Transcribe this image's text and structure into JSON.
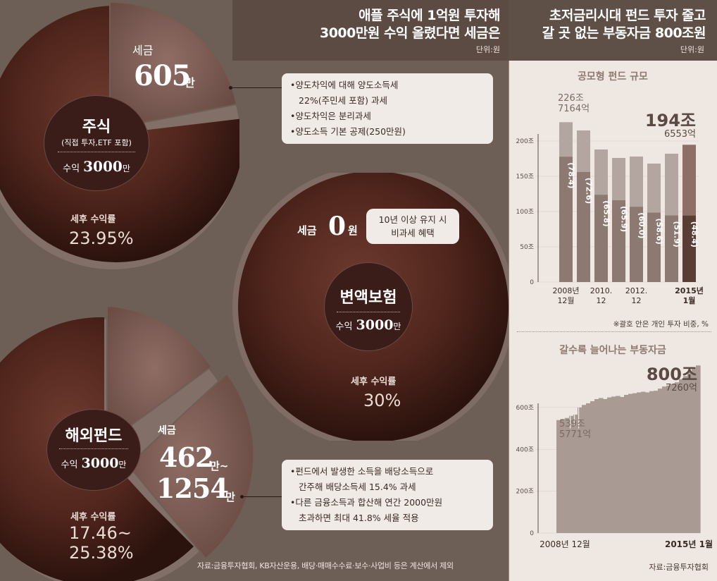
{
  "left": {
    "title_line1": "애플 주식에 1억원 투자해",
    "title_line2": "3000만원 수익 올렸다면 세금은",
    "unit": "단위:원",
    "stock": {
      "tax_label": "세금",
      "tax_value": "605",
      "tax_suffix": "만",
      "name": "주식",
      "desc": "(직접 투자,ETF 포함)",
      "profit_label": "수익",
      "profit_value": "3000",
      "profit_suffix": "만",
      "rate_label": "세후 수익률",
      "rate_value": "23.95%",
      "notes": [
        "•양도차익에 대해 양도소득세",
        "22%(주민세 포함) 과세",
        "•양도차익은 분리과세",
        "•양도소득 기본 공제(250만원)"
      ]
    },
    "insurance": {
      "tax_label": "세금",
      "tax_value": "0",
      "tax_suffix": "원",
      "badge_line1": "10년 이상 유지 시",
      "badge_line2": "비과세 혜택",
      "name": "변액보험",
      "profit_label": "수익",
      "profit_value": "3000",
      "profit_suffix": "만",
      "rate_label": "세후 수익률",
      "rate_value": "30%"
    },
    "fund": {
      "tax_label": "세금",
      "tax_value1": "462",
      "tax_suffix1": "만~",
      "tax_value2": "1254",
      "tax_suffix2": "만",
      "name": "해외펀드",
      "profit_label": "수익",
      "profit_value": "3000",
      "profit_suffix": "만",
      "rate_label": "세후 수익률",
      "rate_line1": "17.46~",
      "rate_line2": "25.38%",
      "notes": [
        "•펀드에서 발생한 소득을 배당소득으로",
        "간주해 배당소득세 15.4% 과세",
        "•다른 금융소득과 합산해 연간 2000만원",
        "초과하면 최대 41.8% 세율 적용"
      ]
    },
    "source": "자료:금융투자협회, KB자산운용, 배당·매매수수료·보수·사업비 등은 계산에서 제외"
  },
  "right": {
    "title_line1": "초저금리시대 펀드 투자 줄고",
    "title_line2": "갈 곳 없는 부동자금 800조원",
    "unit": "단위:원",
    "chart1_subtitle": "공모형 펀드 규모",
    "chart1_first_line1": "226조",
    "chart1_first_line2": "7164억",
    "chart1_last_line1": "194조",
    "chart1_last_line2": "6553억",
    "chart1_note": "※괄호 안은 개인 투자 비중, %",
    "chart2_subtitle": "갈수록 늘어나는 부동자금",
    "chart2_first_line1": "539조",
    "chart2_first_line2": "5771억",
    "chart2_last_line1": "800조",
    "chart2_last_line2": "7260억",
    "source": "자료:금융투자협회"
  },
  "chart_data": [
    {
      "type": "pie",
      "slices": [
        {
          "name": "세금",
          "value": 605
        },
        {
          "name": "수익",
          "value": 3000
        }
      ],
      "title": "주식"
    },
    {
      "type": "pie",
      "slices": [
        {
          "name": "세금",
          "value": 0
        },
        {
          "name": "수익",
          "value": 3000
        }
      ],
      "title": "변액보험"
    },
    {
      "type": "pie",
      "slices": [
        {
          "name": "세금",
          "value": 1254
        },
        {
          "name": "수익",
          "value": 3000
        }
      ],
      "title": "해외펀드"
    },
    {
      "type": "bar",
      "title": "공모형 펀드 규모",
      "categories": [
        "2008년 12월",
        "",
        "2010. 12",
        "",
        "2012. 12",
        "",
        "",
        "2015년 1월"
      ],
      "x_tick_labels": [
        {
          "line1": "2008년",
          "line2": "12월",
          "index": 0
        },
        {
          "line1": "2010.",
          "line2": "12",
          "index": 2
        },
        {
          "line1": "2012.",
          "line2": "12",
          "index": 4
        },
        {
          "line1": "2015년",
          "line2": "1월",
          "index": 7
        }
      ],
      "values": [
        226.7,
        215,
        188,
        176,
        178,
        168,
        182,
        194.7
      ],
      "individual_share": [
        78.4,
        72.6,
        65.8,
        65.9,
        60.0,
        58.6,
        51.9,
        48.4
      ],
      "individual_share_labels": [
        "(78.4)",
        "(72.6)",
        "(65.8)",
        "(65.9)",
        "(60.0)",
        "(58.6)",
        "(51.9)",
        "(48.4)"
      ],
      "yticks": [
        "0",
        "50조",
        "100조",
        "150조",
        "200조"
      ],
      "ylim": [
        0,
        230
      ],
      "colors": {
        "total": "#b3a6a0",
        "individual": "#8c7a72",
        "highlight_total": "#8d6f67",
        "highlight_individual": "#5a3e36"
      }
    },
    {
      "type": "area",
      "title": "갈수록 늘어나는 부동자금",
      "x_labels": [
        "2008년 12월",
        "2015년 1월"
      ],
      "values": [
        539.6,
        545,
        550,
        560,
        566,
        600,
        612,
        620,
        630,
        640,
        645,
        640,
        648,
        652,
        655,
        650,
        660,
        665,
        668,
        672,
        675,
        672,
        678,
        680,
        690,
        700,
        705,
        712,
        720,
        735,
        750,
        770,
        785,
        800.7
      ],
      "dips": [
        {
          "index": 3,
          "value": 500
        },
        {
          "index": 4,
          "value": 510
        },
        {
          "index": 5,
          "value": 500
        }
      ],
      "yticks": [
        "0",
        "200조",
        "400조",
        "600조"
      ],
      "ylim": [
        0,
        850
      ],
      "color": "#a99a93"
    }
  ]
}
